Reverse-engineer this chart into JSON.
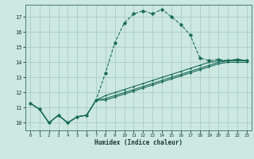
{
  "xlabel": "Humidex (Indice chaleur)",
  "background_color": "#cce8e0",
  "grid_color": "#aaccC4",
  "line_color": "#1a6b5a",
  "xlim": [
    -0.5,
    23.5
  ],
  "ylim": [
    9.5,
    17.8
  ],
  "xticks": [
    0,
    1,
    2,
    3,
    4,
    5,
    6,
    7,
    8,
    9,
    10,
    11,
    12,
    13,
    14,
    15,
    16,
    17,
    18,
    19,
    20,
    21,
    22,
    23
  ],
  "yticks": [
    10,
    11,
    12,
    13,
    14,
    15,
    16,
    17
  ],
  "series1_x": [
    0,
    1,
    2,
    3,
    4,
    5,
    6,
    7,
    8,
    9,
    10,
    11,
    12,
    13,
    14,
    15,
    16,
    17,
    18,
    19,
    20,
    21,
    22,
    23
  ],
  "series1_y": [
    11.3,
    10.9,
    10.0,
    10.5,
    10.0,
    10.4,
    10.5,
    11.5,
    13.3,
    15.3,
    16.6,
    17.2,
    17.4,
    17.2,
    17.5,
    17.0,
    16.5,
    15.8,
    14.3,
    14.1,
    14.2,
    14.1,
    14.2,
    14.1
  ],
  "series2_x": [
    0,
    1,
    2,
    3,
    4,
    5,
    6,
    7,
    8,
    9,
    10,
    11,
    12,
    13,
    14,
    15,
    16,
    17,
    18,
    19,
    20,
    21,
    22,
    23
  ],
  "series2_y": [
    11.3,
    10.9,
    10.0,
    10.5,
    10.0,
    10.4,
    10.5,
    11.5,
    11.8,
    12.0,
    12.2,
    12.4,
    12.6,
    12.8,
    13.0,
    13.2,
    13.4,
    13.6,
    13.8,
    14.0,
    14.1,
    14.1,
    14.2,
    14.1
  ],
  "series3_x": [
    0,
    1,
    2,
    3,
    4,
    5,
    6,
    7,
    8,
    9,
    10,
    11,
    12,
    13,
    14,
    15,
    16,
    17,
    18,
    19,
    20,
    21,
    22,
    23
  ],
  "series3_y": [
    11.3,
    10.9,
    10.0,
    10.5,
    10.0,
    10.4,
    10.5,
    11.5,
    11.6,
    11.8,
    12.0,
    12.2,
    12.4,
    12.6,
    12.8,
    13.0,
    13.2,
    13.4,
    13.6,
    13.8,
    14.0,
    14.1,
    14.1,
    14.1
  ],
  "series4_x": [
    0,
    1,
    2,
    3,
    4,
    5,
    6,
    7,
    8,
    9,
    10,
    11,
    12,
    13,
    14,
    15,
    16,
    17,
    18,
    19,
    20,
    21,
    22,
    23
  ],
  "series4_y": [
    11.3,
    10.9,
    10.0,
    10.5,
    10.0,
    10.4,
    10.5,
    11.5,
    11.5,
    11.7,
    11.9,
    12.1,
    12.3,
    12.5,
    12.7,
    12.9,
    13.1,
    13.3,
    13.5,
    13.7,
    13.9,
    14.0,
    14.0,
    14.0
  ]
}
